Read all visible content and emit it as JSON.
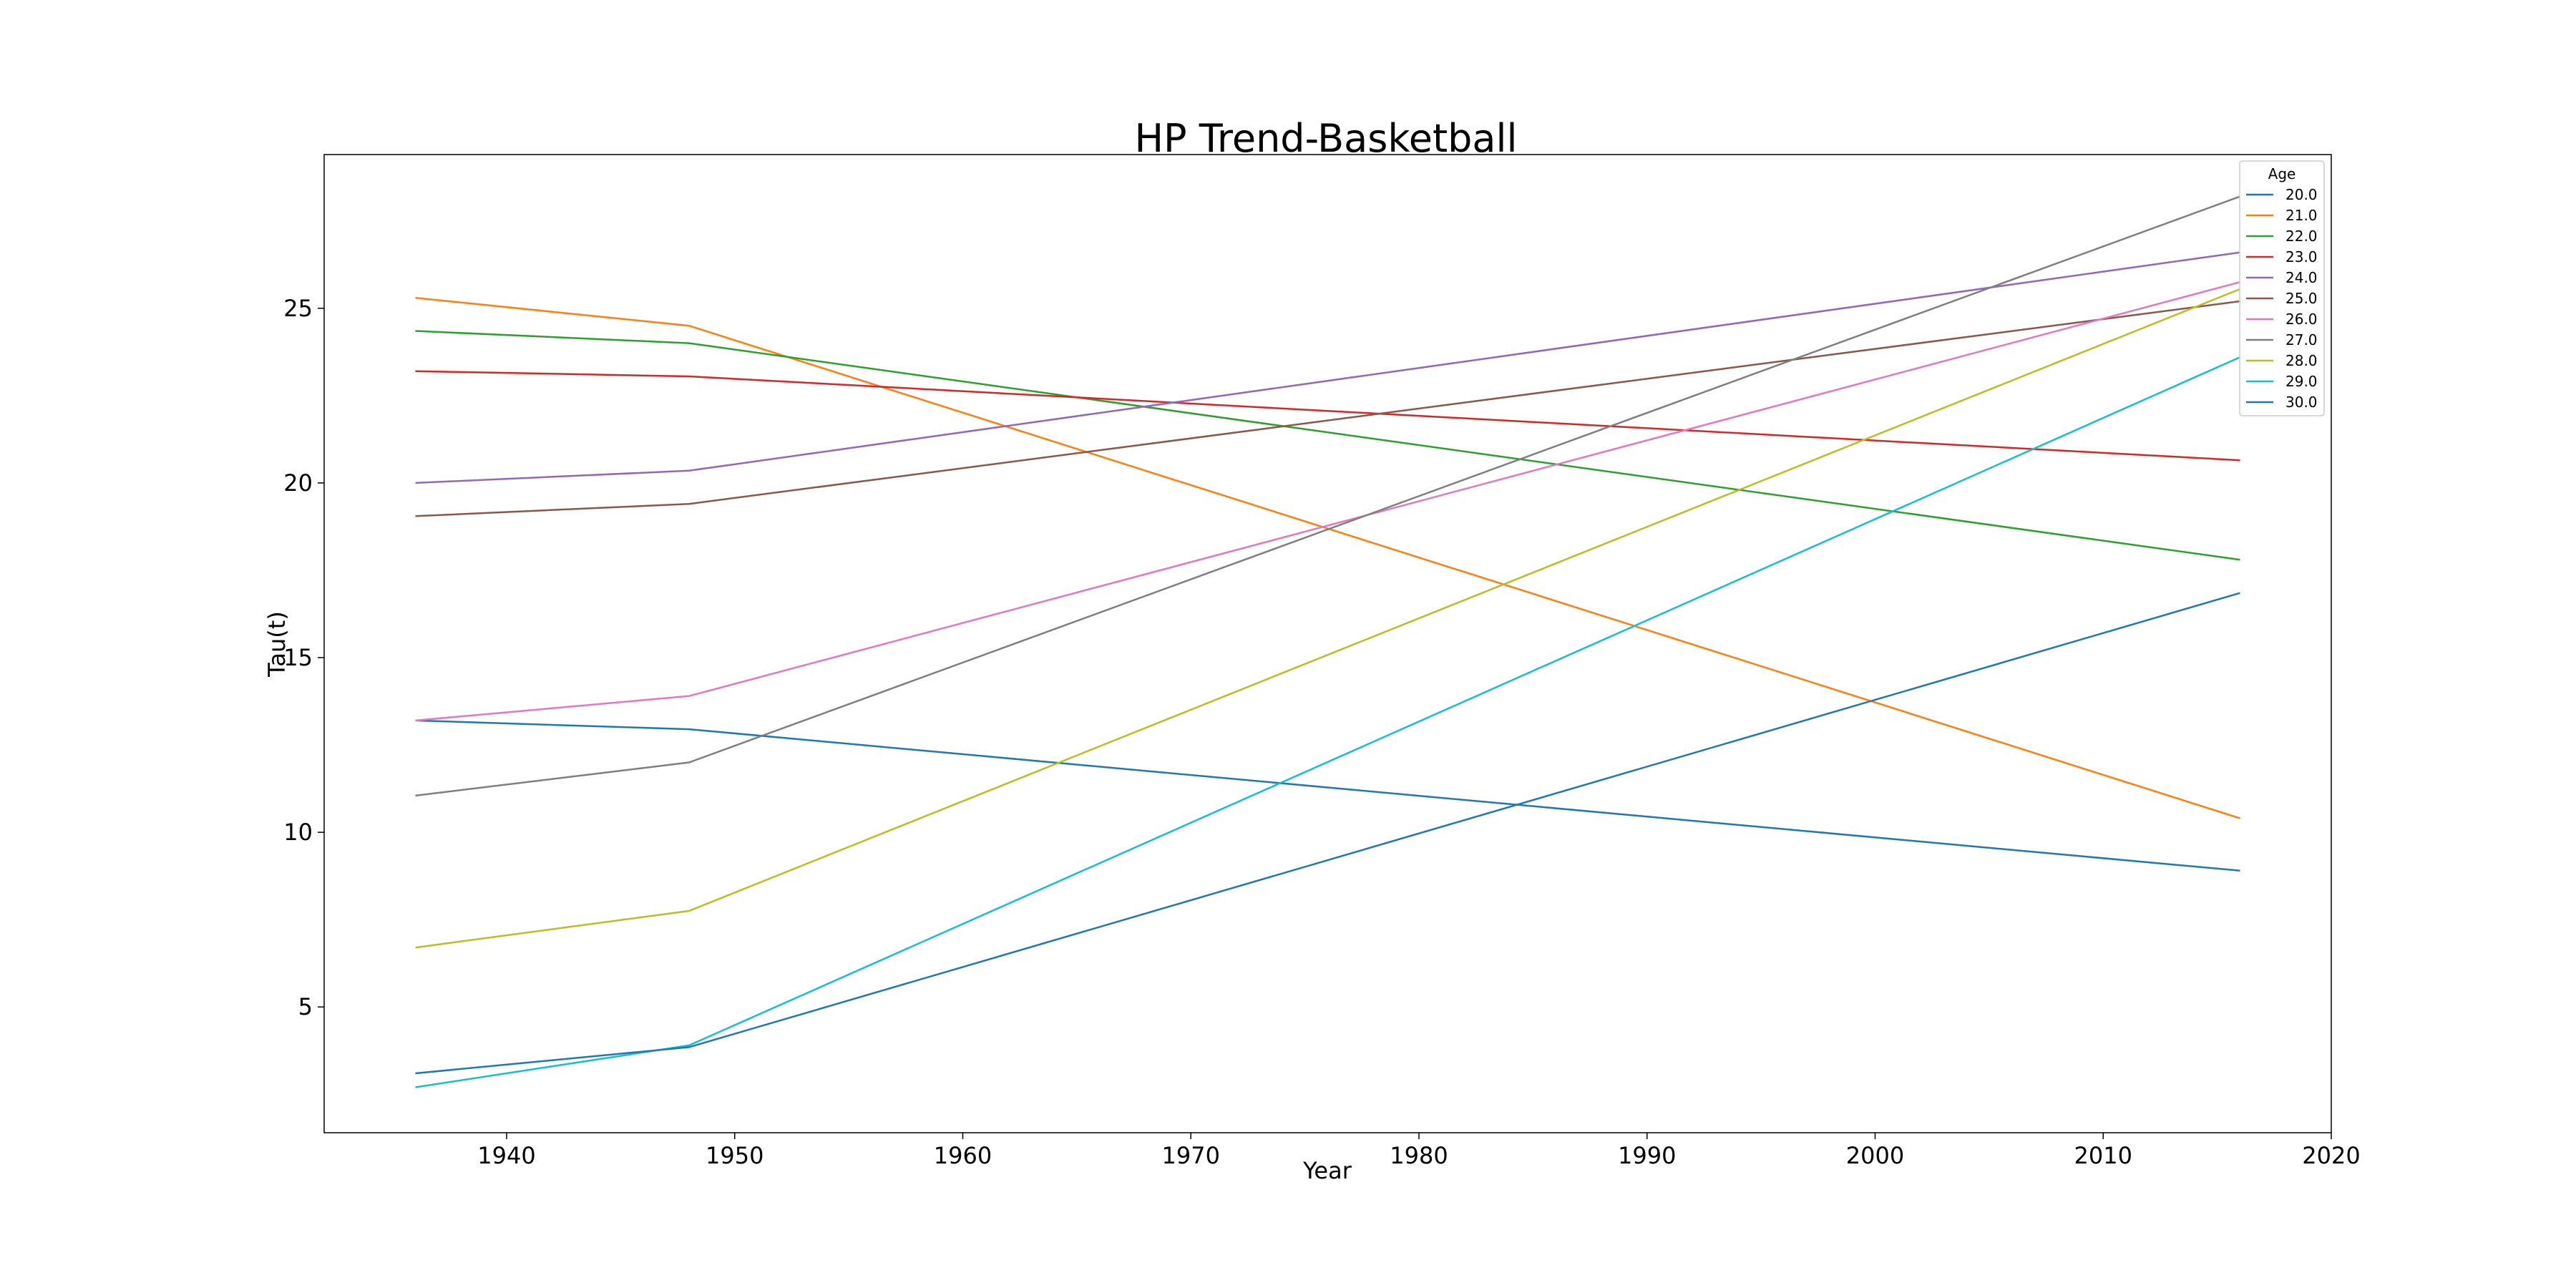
{
  "chart_data": {
    "type": "line",
    "title": "HP Trend-Basketball",
    "xlabel": "Year",
    "ylabel": "Tau(t)",
    "xlim": [
      1932,
      2020
    ],
    "ylim": [
      1.4,
      29.4
    ],
    "x_ticks": [
      1940,
      1950,
      1960,
      1970,
      1980,
      1990,
      2000,
      2010,
      2020
    ],
    "y_ticks": [
      5,
      10,
      15,
      20,
      25
    ],
    "grid": false,
    "legend": {
      "title": "Age",
      "placement": "top-right"
    },
    "x": [
      1936,
      1948,
      2016
    ],
    "series": [
      {
        "name": "20.0",
        "color": "#1f77b4",
        "values": [
          13.2,
          12.95,
          8.9
        ]
      },
      {
        "name": "21.0",
        "color": "#ff7f0e",
        "values": [
          25.3,
          24.5,
          10.4
        ]
      },
      {
        "name": "22.0",
        "color": "#2ca02c",
        "values": [
          24.35,
          24.0,
          17.8
        ]
      },
      {
        "name": "23.0",
        "color": "#d62728",
        "values": [
          23.2,
          23.05,
          20.65
        ]
      },
      {
        "name": "24.0",
        "color": "#9467bd",
        "values": [
          20.0,
          20.35,
          26.6
        ]
      },
      {
        "name": "25.0",
        "color": "#8c564b",
        "values": [
          19.05,
          19.4,
          25.2
        ]
      },
      {
        "name": "26.0",
        "color": "#e377c2",
        "values": [
          13.2,
          13.9,
          25.75
        ]
      },
      {
        "name": "27.0",
        "color": "#7f7f7f",
        "values": [
          11.05,
          12.0,
          28.2
        ]
      },
      {
        "name": "28.0",
        "color": "#bcbd22",
        "values": [
          6.7,
          7.75,
          25.55
        ]
      },
      {
        "name": "29.0",
        "color": "#17becf",
        "values": [
          2.7,
          3.9,
          23.6
        ]
      },
      {
        "name": "30.0",
        "color": "#1f77b4",
        "values": [
          3.1,
          3.85,
          16.85
        ]
      }
    ]
  }
}
